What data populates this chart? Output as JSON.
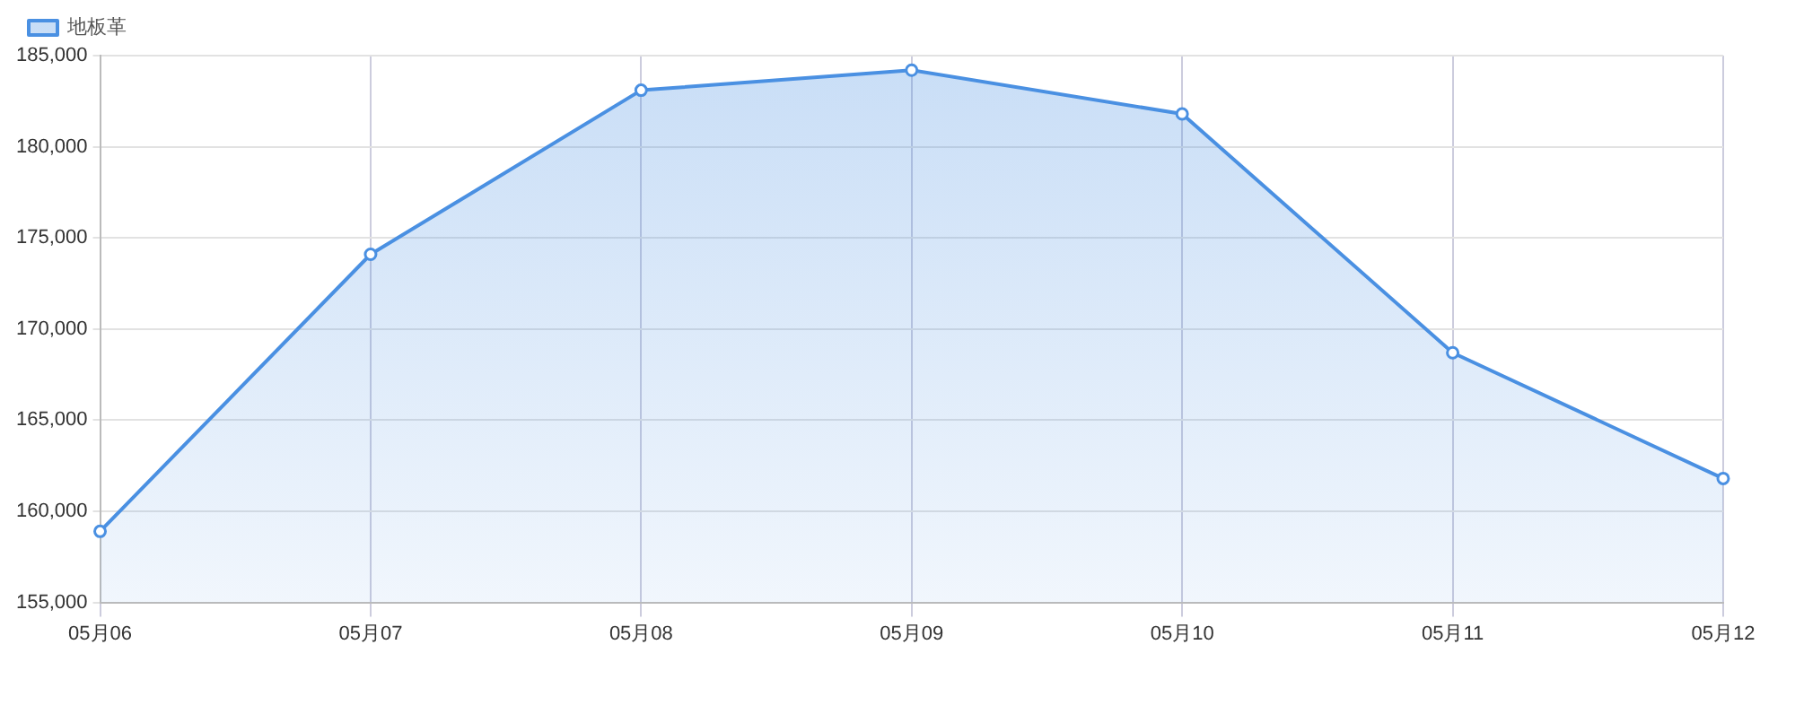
{
  "chart_data": {
    "type": "area",
    "categories": [
      "05月06",
      "05月07",
      "05月08",
      "05月09",
      "05月10",
      "05月11",
      "05月12"
    ],
    "series": [
      {
        "name": "地板革",
        "color": "#4a90e2",
        "values": [
          158900,
          174100,
          183100,
          184200,
          181800,
          168700,
          161800
        ]
      }
    ],
    "ylim": [
      155000,
      185000
    ],
    "yticks": [
      {
        "value": 155000,
        "label": "155,000"
      },
      {
        "value": 160000,
        "label": "160,000"
      },
      {
        "value": 165000,
        "label": "165,000"
      },
      {
        "value": 170000,
        "label": "170,000"
      },
      {
        "value": 175000,
        "label": "175,000"
      },
      {
        "value": 180000,
        "label": "180,000"
      },
      {
        "value": 185000,
        "label": "185,000"
      }
    ],
    "grid": true,
    "legend": "top left",
    "marker": "circle",
    "line_style": "solid"
  }
}
